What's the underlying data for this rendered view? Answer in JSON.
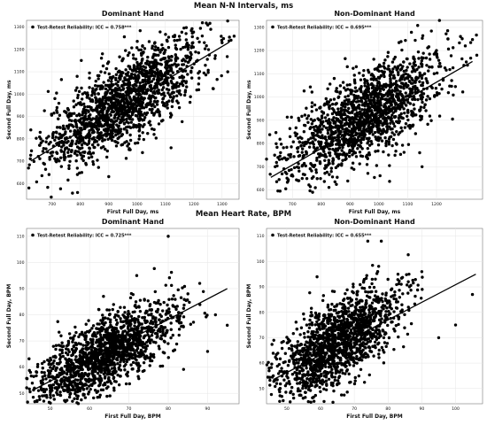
{
  "figure": {
    "row_titles": [
      "Mean N-N Intervals, ms",
      "Mean Heart Rate, BPM"
    ]
  },
  "chart_data": [
    {
      "type": "scatter",
      "title": "Dominant Hand",
      "xlabel": "First Full Day, ms",
      "ylabel": "Second Full Day, ms",
      "xlim": [
        610,
        1360
      ],
      "ylim": [
        530,
        1330
      ],
      "xticks": [
        700,
        800,
        900,
        1000,
        1100,
        1200,
        1300
      ],
      "yticks": [
        600,
        700,
        800,
        900,
        1000,
        1100,
        1200,
        1300
      ],
      "grid": true,
      "legend": "Test-Retest Reliability: ICC = 0.758***",
      "legend_position": "top-left",
      "point_color": "#000000",
      "series": [
        {
          "n_points": 1600,
          "center": [
            955,
            968
          ],
          "sd": [
            140,
            140
          ],
          "r": 0.76,
          "sample_points": [
            [
              625,
              840
            ],
            [
              660,
              800
            ],
            [
              700,
              740
            ],
            [
              760,
              680
            ],
            [
              790,
              560
            ],
            [
              830,
              780
            ],
            [
              880,
              900
            ],
            [
              920,
              950
            ],
            [
              980,
              1010
            ],
            [
              1040,
              1050
            ],
            [
              1100,
              1120
            ],
            [
              1180,
              1200
            ],
            [
              1230,
              1260
            ],
            [
              1260,
              1290
            ],
            [
              1300,
              1230
            ],
            [
              1320,
              1100
            ],
            [
              1060,
              820
            ],
            [
              1120,
              760
            ]
          ]
        }
      ],
      "regression": {
        "x": [
          625,
          1325
        ],
        "y": [
          701,
          1232
        ]
      }
    },
    {
      "type": "scatter",
      "title": "Non-Dominant Hand",
      "xlabel": "First Full Day, ms",
      "ylabel": "Second Full Day, ms",
      "xlim": [
        610,
        1360
      ],
      "ylim": [
        560,
        1330
      ],
      "xticks": [
        700,
        800,
        900,
        1000,
        1100,
        1200
      ],
      "yticks": [
        600,
        700,
        800,
        900,
        1000,
        1100,
        1200,
        1300
      ],
      "grid": true,
      "legend": "Test-Retest Reliability: ICC = 0.695***",
      "legend_position": "top-left",
      "point_color": "#000000",
      "series": [
        {
          "n_points": 1600,
          "center": [
            945,
            915
          ],
          "sd": [
            135,
            130
          ],
          "r": 0.7,
          "sample_points": [
            [
              640,
              700
            ],
            [
              680,
              670
            ],
            [
              720,
              640
            ],
            [
              770,
              590
            ],
            [
              830,
              760
            ],
            [
              880,
              850
            ],
            [
              930,
              900
            ],
            [
              990,
              960
            ],
            [
              1040,
              1010
            ],
            [
              1100,
              1080
            ],
            [
              1150,
              1140
            ],
            [
              1200,
              1200
            ],
            [
              1240,
              1250
            ],
            [
              1300,
              1220
            ],
            [
              1340,
              1180
            ],
            [
              1060,
              800
            ],
            [
              1150,
              700
            ]
          ]
        }
      ],
      "regression": {
        "x": [
          625,
          1325
        ],
        "y": [
          654,
          1153
        ]
      }
    },
    {
      "type": "scatter",
      "title": "Dominant Hand",
      "xlabel": "First Full Day, BPM",
      "ylabel": "Second Full Day, BPM",
      "xlim": [
        44,
        98
      ],
      "ylim": [
        46,
        113
      ],
      "xticks": [
        50,
        60,
        70,
        80,
        90
      ],
      "yticks": [
        50,
        60,
        70,
        80,
        90,
        100,
        110
      ],
      "grid": true,
      "legend": "Test-Retest Reliability: ICC = 0.725***",
      "legend_position": "top-left",
      "point_color": "#000000",
      "series": [
        {
          "n_points": 1600,
          "center": [
            64,
            65
          ],
          "sd": [
            9,
            10
          ],
          "r": 0.72,
          "sample_points": [
            [
              46,
              52
            ],
            [
              48,
              49
            ],
            [
              50,
              52
            ],
            [
              53,
              55
            ],
            [
              56,
              58
            ],
            [
              60,
              62
            ],
            [
              63,
              65
            ],
            [
              66,
              70
            ],
            [
              70,
              74
            ],
            [
              74,
              79
            ],
            [
              78,
              84
            ],
            [
              81,
              86
            ],
            [
              85,
              88
            ],
            [
              88,
              92
            ],
            [
              92,
              80
            ],
            [
              95,
              76
            ],
            [
              80,
              110
            ],
            [
              72,
              95
            ],
            [
              90,
              66
            ]
          ]
        }
      ],
      "regression": {
        "x": [
          46,
          95
        ],
        "y": [
          51.5,
          90
        ]
      }
    },
    {
      "type": "scatter",
      "title": "Non-Dominant Hand",
      "xlabel": "First Full Day, BPM",
      "ylabel": "Second Full Day, BPM",
      "xlim": [
        44,
        108
      ],
      "ylim": [
        44,
        113
      ],
      "xticks": [
        50,
        60,
        70,
        80,
        90,
        100
      ],
      "yticks": [
        50,
        60,
        70,
        80,
        90,
        100,
        110
      ],
      "grid": true,
      "legend": "Test-Retest Reliability: ICC = 0.655***",
      "legend_position": "top-left",
      "point_color": "#000000",
      "series": [
        {
          "n_points": 1600,
          "center": [
            65,
            68
          ],
          "sd": [
            9,
            11
          ],
          "r": 0.66,
          "sample_points": [
            [
              46,
              55
            ],
            [
              48,
              50
            ],
            [
              50,
              52
            ],
            [
              53,
              56
            ],
            [
              56,
              60
            ],
            [
              60,
              63
            ],
            [
              63,
              67
            ],
            [
              66,
              70
            ],
            [
              70,
              74
            ],
            [
              74,
              78
            ],
            [
              78,
              85
            ],
            [
              82,
              88
            ],
            [
              86,
              92
            ],
            [
              90,
              96
            ],
            [
              74,
              108
            ],
            [
              78,
              108
            ],
            [
              105,
              87
            ],
            [
              95,
              70
            ],
            [
              100,
              75
            ]
          ]
        }
      ],
      "regression": {
        "x": [
          46,
          106
        ],
        "y": [
          53.5,
          95
        ]
      }
    }
  ]
}
